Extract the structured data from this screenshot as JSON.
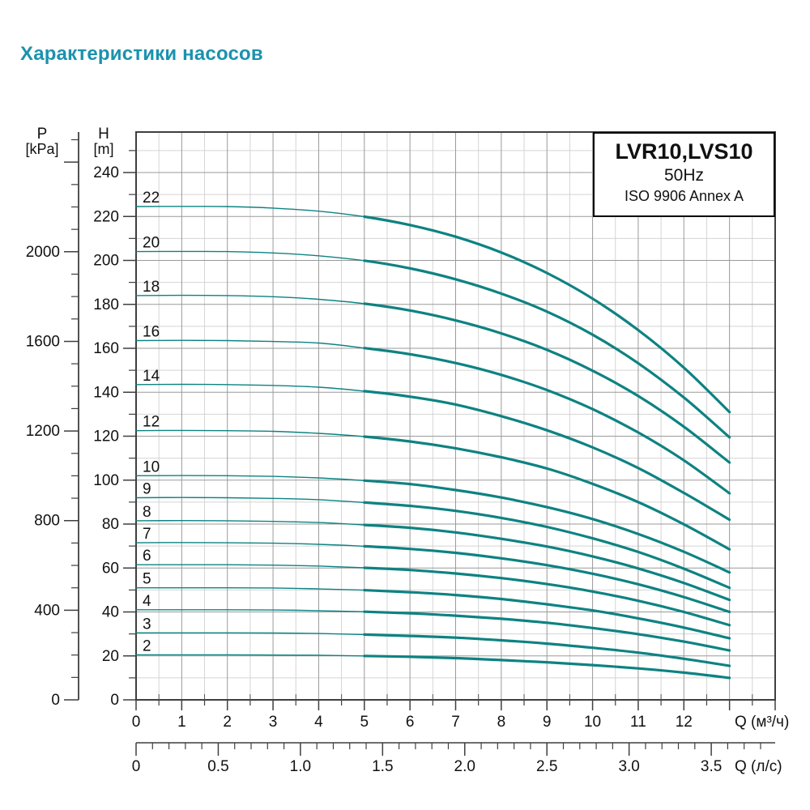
{
  "page_title": "Характеристики насосов",
  "info_box": {
    "model": "LVR10,LVS10",
    "frequency": "50Hz",
    "standard": "ISO 9906 Annex A"
  },
  "axes": {
    "pressure": {
      "name": "P",
      "unit": "[kPa]",
      "tick_labels": [
        2000,
        1600,
        1200,
        800,
        400,
        0
      ],
      "major_step": 400,
      "minor_step": 100,
      "minor_max": 2500,
      "major_max": 2400
    },
    "head": {
      "name": "H",
      "unit": "[m]",
      "tick_labels": [
        240,
        220,
        200,
        180,
        160,
        140,
        120,
        100,
        80,
        60,
        40,
        20,
        0
      ],
      "minor_step": 10,
      "minor_max": 250
    },
    "flow_m3h": {
      "label": "Q (м³/ч)",
      "tick_labels": [
        0,
        1,
        2,
        3,
        4,
        5,
        6,
        7,
        8,
        9,
        10,
        11,
        12
      ],
      "major_ticks": [
        0,
        1,
        2,
        3,
        4,
        5,
        6,
        7,
        8,
        9,
        10,
        11,
        12,
        13,
        14
      ],
      "minor_step": 0.5,
      "axis_max": 14
    },
    "flow_ls": {
      "label": "Q (л/с)",
      "tick_labels": [
        "0",
        "0.5",
        "1.0",
        "1.5",
        "2.0",
        "2.5",
        "3.0",
        "3.5"
      ],
      "minor_step": 0.1,
      "minor_max": 3.8,
      "m3h_per_ls": 3.6
    }
  },
  "chart_data": {
    "type": "line",
    "title": "LVR10,LVS10 50Hz ISO 9906 Annex A",
    "xlabel": "Q (м³/ч)",
    "x2label": "Q (л/с)",
    "ylabel": "H [m]",
    "y2label": "P [kPa]",
    "x_range_m3h": [
      0,
      14
    ],
    "y_range_m": [
      0,
      258
    ],
    "grid": true,
    "thick_from_x": 5,
    "x": [
      0,
      1,
      2,
      3,
      4,
      5,
      6,
      7,
      8,
      9,
      10,
      11,
      12,
      13
    ],
    "series": [
      {
        "name": "22",
        "values": [
          224.5,
          224.6,
          224.5,
          223.8,
          222.4,
          219.9,
          216.1,
          210.8,
          203.6,
          194.3,
          182.6,
          168.3,
          151.2,
          131.0
        ]
      },
      {
        "name": "20",
        "values": [
          204.0,
          204.1,
          204.0,
          203.4,
          202.1,
          199.9,
          196.4,
          191.4,
          184.9,
          176.7,
          166.2,
          153.2,
          137.6,
          119.5
        ]
      },
      {
        "name": "18",
        "values": [
          184.0,
          184.1,
          184.0,
          183.5,
          182.3,
          180.3,
          177.2,
          172.7,
          166.8,
          159.3,
          149.8,
          138.3,
          124.3,
          108.0
        ]
      },
      {
        "name": "16",
        "values": [
          163.5,
          163.6,
          163.5,
          163.1,
          162.4,
          160.1,
          157.3,
          153.3,
          147.9,
          141.0,
          132.3,
          121.7,
          109.0,
          94.0
        ]
      },
      {
        "name": "14",
        "values": [
          143.5,
          143.6,
          143.5,
          143.1,
          142.3,
          140.5,
          138.0,
          134.4,
          129.1,
          122.7,
          114.9,
          105.5,
          94.2,
          82.0
        ]
      },
      {
        "name": "12",
        "values": [
          122.5,
          122.6,
          122.5,
          122.2,
          121.3,
          119.8,
          117.6,
          114.5,
          110.4,
          105.3,
          98.3,
          90.0,
          79.9,
          68.5
        ]
      },
      {
        "name": "10",
        "values": [
          102.0,
          102.1,
          102.0,
          101.7,
          101.0,
          99.8,
          98.2,
          95.5,
          92.1,
          87.7,
          82.3,
          75.5,
          67.4,
          58.0
        ]
      },
      {
        "name": "9",
        "values": [
          92.0,
          92.1,
          92.0,
          91.7,
          91.1,
          89.8,
          88.3,
          86.0,
          82.8,
          78.7,
          73.5,
          67.3,
          59.7,
          51.0
        ]
      },
      {
        "name": "8",
        "values": [
          81.5,
          81.6,
          81.5,
          81.2,
          80.7,
          79.6,
          78.3,
          76.2,
          73.3,
          69.8,
          65.3,
          59.8,
          53.2,
          45.5
        ]
      },
      {
        "name": "7",
        "values": [
          71.5,
          71.6,
          71.5,
          71.3,
          70.8,
          69.9,
          68.7,
          66.9,
          64.4,
          61.3,
          57.4,
          52.6,
          46.8,
          40.0
        ]
      },
      {
        "name": "6",
        "values": [
          61.5,
          61.5,
          61.5,
          61.3,
          60.9,
          60.1,
          59.1,
          57.5,
          55.4,
          52.7,
          49.3,
          45.1,
          40.0,
          34.0
        ]
      },
      {
        "name": "5",
        "values": [
          51.0,
          51.0,
          51.0,
          50.9,
          50.5,
          49.9,
          49.0,
          47.7,
          45.9,
          43.5,
          40.7,
          37.1,
          32.9,
          28.0
        ]
      },
      {
        "name": "4",
        "values": [
          41.0,
          41.0,
          41.0,
          40.9,
          40.6,
          40.1,
          39.4,
          38.3,
          36.9,
          35.1,
          32.7,
          29.9,
          26.5,
          22.5
        ]
      },
      {
        "name": "3",
        "values": [
          30.5,
          30.5,
          30.5,
          30.4,
          30.2,
          29.7,
          29.1,
          28.3,
          27.1,
          25.6,
          23.7,
          21.5,
          18.7,
          15.5
        ]
      },
      {
        "name": "2",
        "values": [
          20.5,
          20.5,
          20.5,
          20.4,
          20.3,
          20.0,
          19.6,
          19.0,
          18.1,
          17.1,
          15.8,
          14.3,
          12.4,
          10.0
        ]
      }
    ]
  },
  "colors": {
    "title": "#1a92ae",
    "curve": "#0e8282",
    "grid_minor": "#d4d4d4",
    "grid_major": "#9a9a9a",
    "axis": "#3f3f3f",
    "text": "#111111"
  }
}
